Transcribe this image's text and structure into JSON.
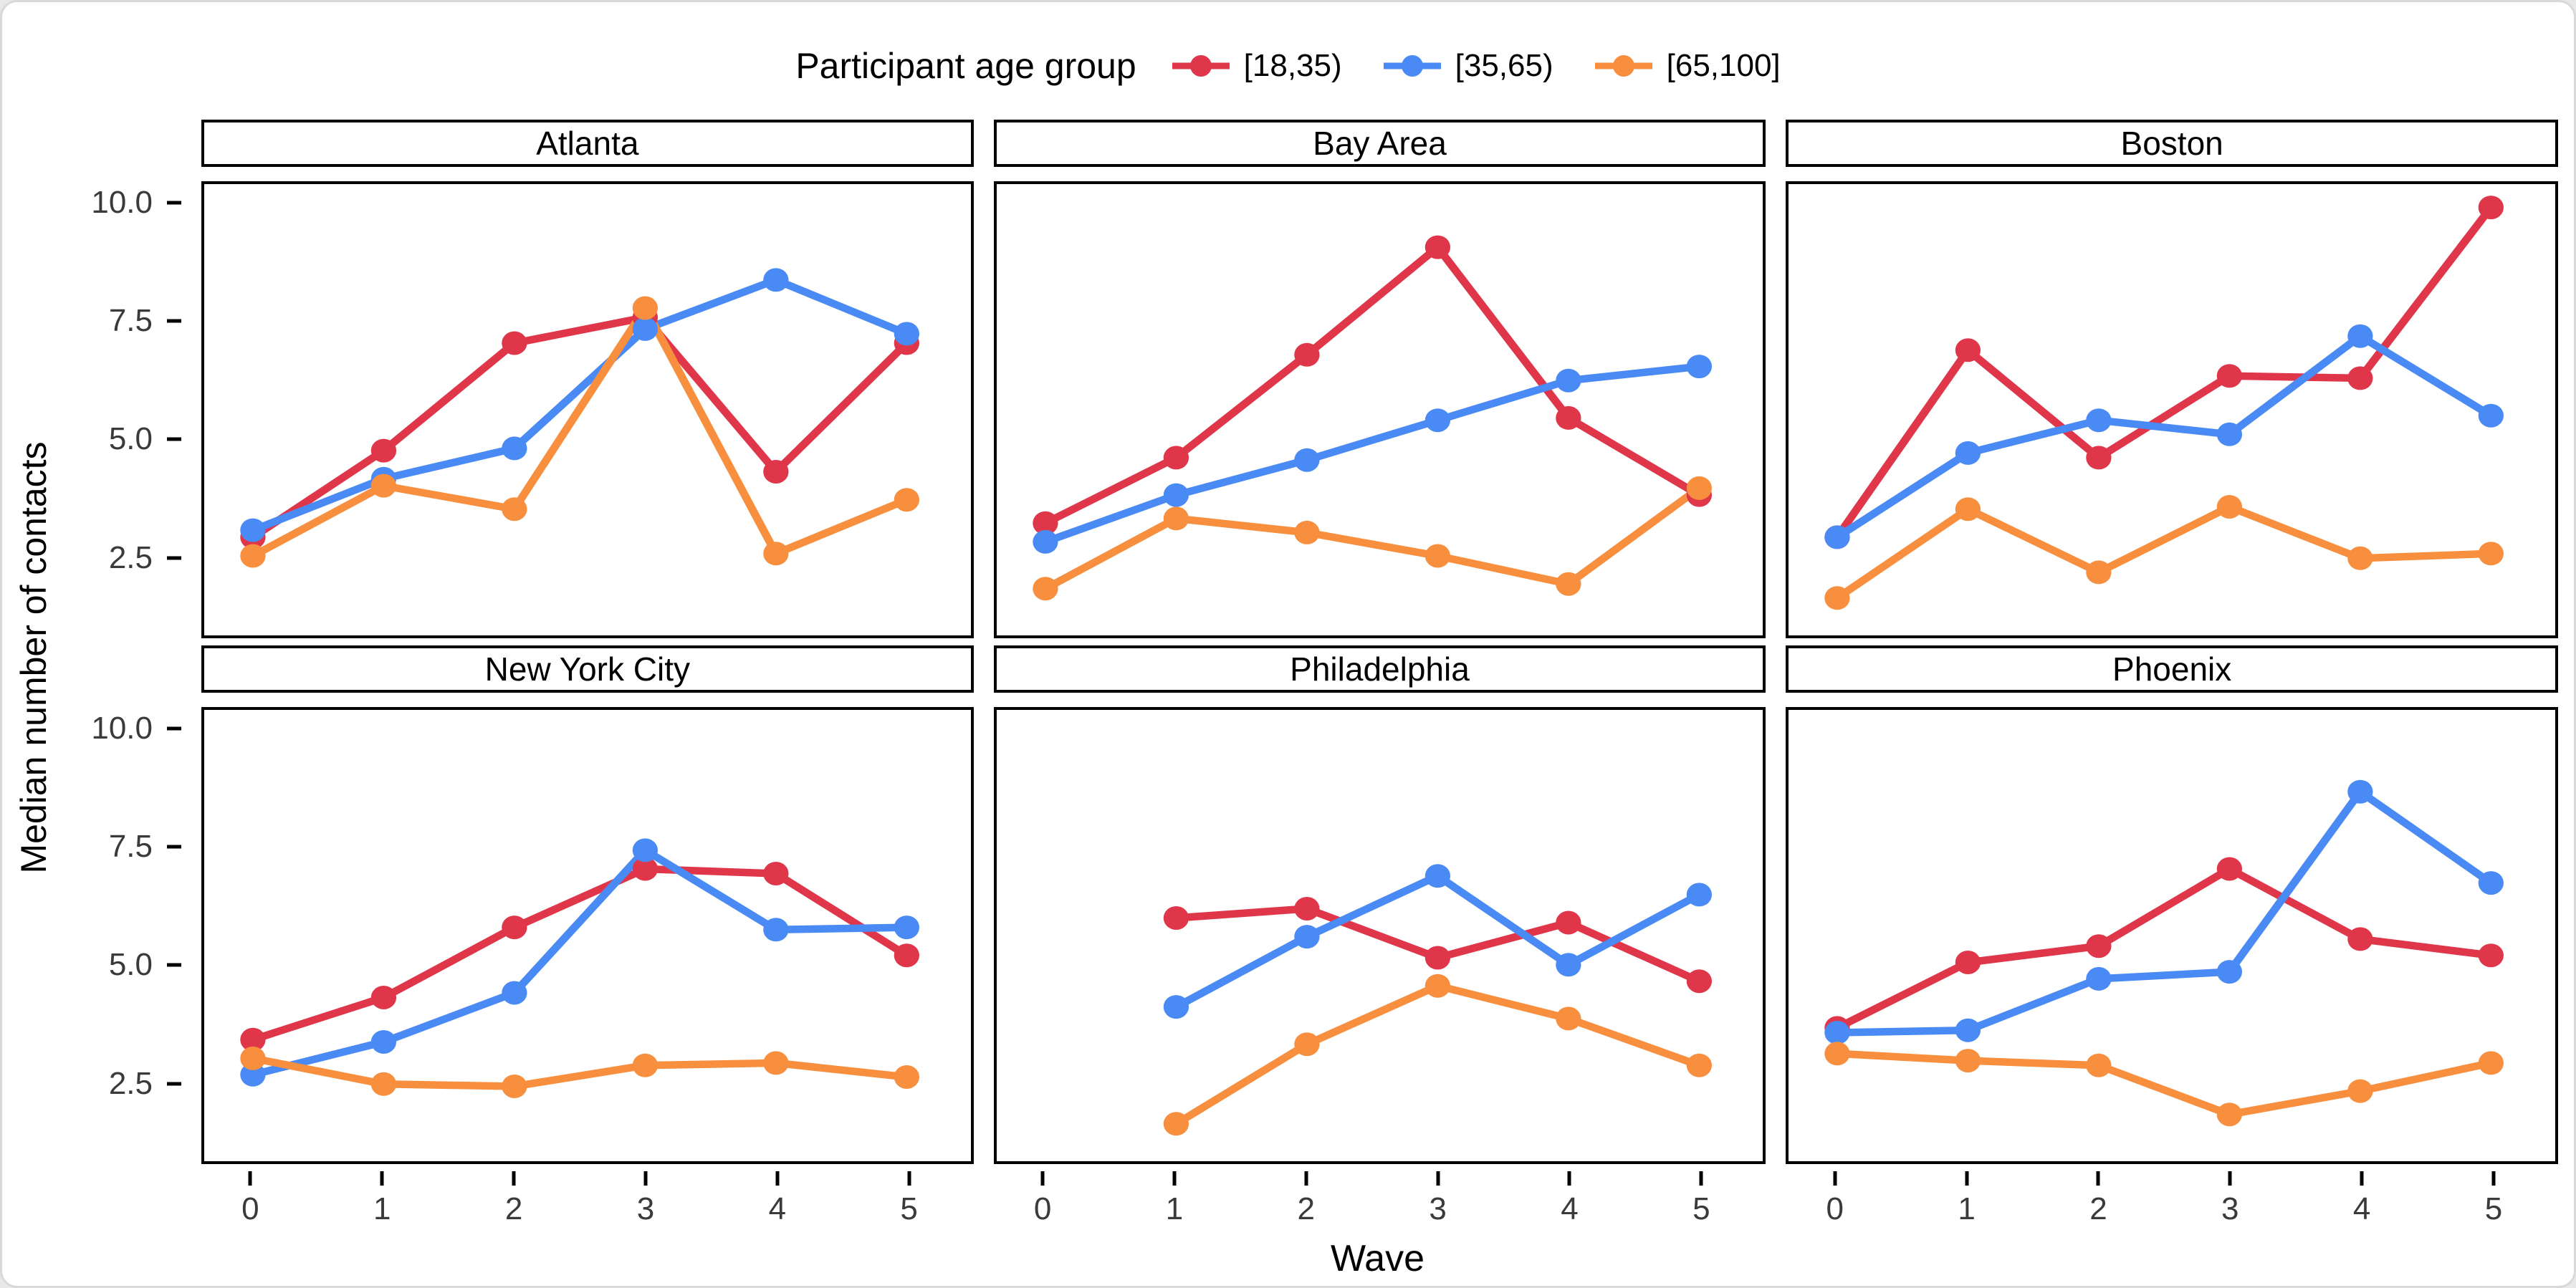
{
  "window": {
    "background": "#ffffff",
    "border_color": "#d9d9d9"
  },
  "chart_data": {
    "type": "line",
    "legend_title": "Participant age group",
    "legend_position": "top",
    "xlabel": "Wave",
    "ylabel": "Median number of contacts",
    "x": [
      0,
      1,
      2,
      3,
      4,
      5
    ],
    "xtick_labels": [
      "0",
      "1",
      "2",
      "3",
      "4",
      "5"
    ],
    "yticks": [
      2.5,
      5.0,
      7.5,
      10.0
    ],
    "ytick_labels": [
      "2.5",
      "5.0",
      "7.5",
      "10.0"
    ],
    "ylim": [
      0.8,
      10.45
    ],
    "grid": "off",
    "series": [
      {
        "name": "[18,35)",
        "color": "#e0364a"
      },
      {
        "name": "[35,65)",
        "color": "#4a8af4"
      },
      {
        "name": "[65,100]",
        "color": "#f78f3f"
      }
    ],
    "facet_layout": {
      "rows": 2,
      "cols": 3
    },
    "facets": [
      {
        "name": "Atlanta",
        "values": [
          [
            2.9,
            4.75,
            7.05,
            7.6,
            4.3,
            7.05
          ],
          [
            3.05,
            4.15,
            4.8,
            7.35,
            8.4,
            7.25
          ],
          [
            2.5,
            4.0,
            3.5,
            7.8,
            2.55,
            3.7
          ]
        ]
      },
      {
        "name": "Bay Area",
        "values": [
          [
            3.2,
            4.6,
            6.8,
            9.1,
            5.45,
            3.8
          ],
          [
            2.8,
            3.8,
            4.55,
            5.4,
            6.25,
            6.55
          ],
          [
            1.8,
            3.3,
            3.0,
            2.5,
            1.9,
            3.95
          ]
        ]
      },
      {
        "name": "Boston",
        "values": [
          [
            2.9,
            6.9,
            4.6,
            6.35,
            6.3,
            9.95
          ],
          [
            2.9,
            4.7,
            5.4,
            5.1,
            7.2,
            5.5
          ],
          [
            1.6,
            3.5,
            2.15,
            3.55,
            2.45,
            2.55
          ]
        ]
      },
      {
        "name": "New York City",
        "values": [
          [
            3.4,
            4.3,
            5.8,
            7.05,
            6.95,
            5.2
          ],
          [
            2.65,
            3.35,
            4.4,
            7.45,
            5.75,
            5.8
          ],
          [
            3.0,
            2.45,
            2.4,
            2.85,
            2.9,
            2.6
          ]
        ]
      },
      {
        "name": "Philadelphia",
        "values": [
          [
            null,
            6.0,
            6.2,
            5.15,
            5.9,
            4.65
          ],
          [
            null,
            4.1,
            5.6,
            6.9,
            5.0,
            6.5
          ],
          [
            null,
            1.6,
            3.3,
            4.55,
            3.85,
            2.85
          ]
        ]
      },
      {
        "name": "Phoenix",
        "values": [
          [
            3.65,
            5.05,
            5.4,
            7.05,
            5.55,
            5.2
          ],
          [
            3.55,
            3.6,
            4.7,
            4.85,
            8.7,
            6.75
          ],
          [
            3.1,
            2.95,
            2.85,
            1.8,
            2.3,
            2.9
          ]
        ]
      }
    ]
  }
}
